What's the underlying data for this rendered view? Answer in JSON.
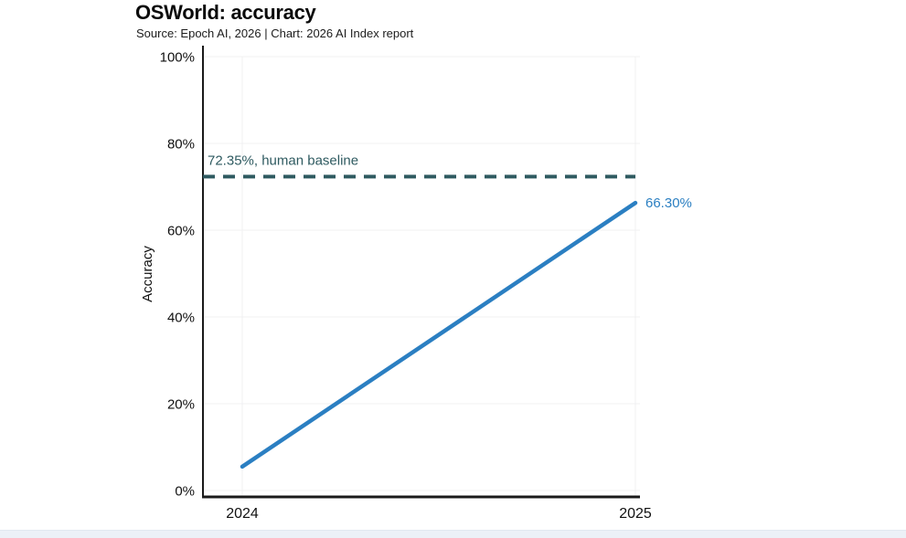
{
  "page": {
    "background": "#ffffff",
    "footer_strip_color": "#ecf1f7"
  },
  "chart": {
    "title": "OSWorld: accuracy",
    "subtitle": "Source: Epoch AI, 2026 | Chart: 2026 AI Index report"
  },
  "chart_data": {
    "type": "line",
    "title": "OSWorld: accuracy",
    "subtitle": "Source: Epoch AI, 2026 | Chart: 2026 AI Index report",
    "xlabel": "",
    "ylabel": "Accuracy",
    "x": [
      2024,
      2025
    ],
    "xtick_labels": [
      "2024",
      "2025"
    ],
    "ylim": [
      0,
      100
    ],
    "yticks": [
      0,
      20,
      40,
      60,
      80,
      100
    ],
    "ytick_labels": [
      "0%",
      "20%",
      "40%",
      "60%",
      "80%",
      "100%"
    ],
    "grid": true,
    "series": [
      {
        "name": "OSWorld accuracy",
        "values": [
          5.5,
          66.3
        ],
        "color": "#2b7fc2",
        "end_label": "66.30%"
      }
    ],
    "baseline": {
      "value": 72.35,
      "label": "72.35%, human baseline",
      "color": "#2e5a60",
      "style": "dashed"
    },
    "colors": {
      "axis": "#1a1a1a",
      "grid": "#f0f1f2",
      "text": "#111111"
    }
  }
}
